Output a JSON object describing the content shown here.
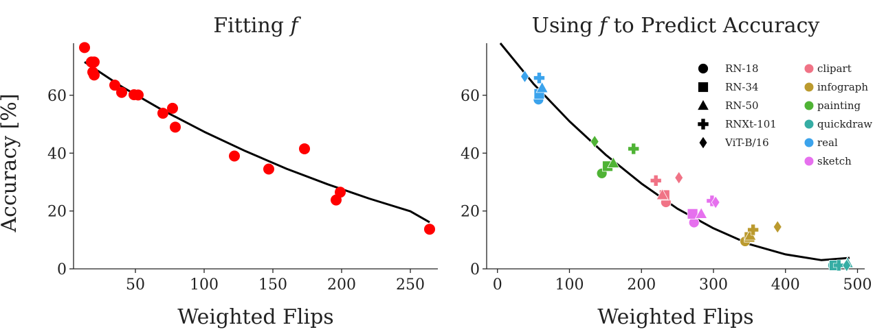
{
  "chart_data": [
    {
      "type": "scatter",
      "title": "Fitting 𝑓",
      "xlabel": "Weighted Flips",
      "ylabel": "Accuracy [%]",
      "xlim": [
        5,
        270
      ],
      "ylim": [
        0,
        78
      ],
      "xticks": [
        50,
        100,
        150,
        200,
        250
      ],
      "yticks": [
        0,
        20,
        40,
        60
      ],
      "grid": false,
      "point_color": "#ff0000",
      "line_color": "#000000",
      "points": [
        {
          "x": 13,
          "y": 76.5
        },
        {
          "x": 18,
          "y": 71.5
        },
        {
          "x": 20,
          "y": 71.5
        },
        {
          "x": 19,
          "y": 68
        },
        {
          "x": 20,
          "y": 67
        },
        {
          "x": 35,
          "y": 63.5
        },
        {
          "x": 40,
          "y": 61
        },
        {
          "x": 49,
          "y": 60.2
        },
        {
          "x": 52,
          "y": 60.1
        },
        {
          "x": 70,
          "y": 53.8
        },
        {
          "x": 77,
          "y": 55.5
        },
        {
          "x": 79,
          "y": 49
        },
        {
          "x": 122,
          "y": 39
        },
        {
          "x": 147,
          "y": 34.5
        },
        {
          "x": 173,
          "y": 41.5
        },
        {
          "x": 196,
          "y": 23.8
        },
        {
          "x": 199,
          "y": 26.5
        },
        {
          "x": 264,
          "y": 13.7
        }
      ],
      "fit_curve": {
        "x": [
          13,
          40,
          70,
          100,
          130,
          160,
          190,
          220,
          250,
          264
        ],
        "y": [
          71.5,
          63.0,
          54.8,
          47.4,
          40.7,
          34.6,
          29.2,
          24.3,
          19.9,
          16.1
        ]
      }
    },
    {
      "type": "scatter",
      "title": "Using 𝑓 to Predict Accuracy",
      "xlabel": "Weighted Flips",
      "ylabel": "",
      "xlim": [
        -15,
        510
      ],
      "ylim": [
        0,
        78
      ],
      "xticks": [
        0,
        100,
        200,
        300,
        400,
        500
      ],
      "yticks": [
        0,
        20,
        40,
        60
      ],
      "grid": false,
      "legend_position": "top-right",
      "legend_models": [
        {
          "name": "RN-18",
          "marker": "circle"
        },
        {
          "name": "RN-34",
          "marker": "square"
        },
        {
          "name": "RN-50",
          "marker": "triangle"
        },
        {
          "name": "RNXt-101",
          "marker": "plus"
        },
        {
          "name": "ViT-B/16",
          "marker": "diamond"
        }
      ],
      "legend_domains": [
        {
          "name": "clipart",
          "color": "#f07386"
        },
        {
          "name": "infograph",
          "color": "#bb9a2e"
        },
        {
          "name": "painting",
          "color": "#4fb335"
        },
        {
          "name": "quickdraw",
          "color": "#36ada4"
        },
        {
          "name": "real",
          "color": "#3ba3ec"
        },
        {
          "name": "sketch",
          "color": "#e670ee"
        }
      ],
      "points": [
        {
          "domain": "real",
          "model": "RN-18",
          "x": 57,
          "y": 58.5
        },
        {
          "domain": "real",
          "model": "RN-34",
          "x": 58,
          "y": 60.5
        },
        {
          "domain": "real",
          "model": "RN-50",
          "x": 62,
          "y": 62.5
        },
        {
          "domain": "real",
          "model": "RNXt-101",
          "x": 58,
          "y": 66
        },
        {
          "domain": "real",
          "model": "ViT-B/16",
          "x": 38,
          "y": 66.5
        },
        {
          "domain": "painting",
          "model": "RN-18",
          "x": 145,
          "y": 33
        },
        {
          "domain": "painting",
          "model": "RN-34",
          "x": 153,
          "y": 35.5
        },
        {
          "domain": "painting",
          "model": "RN-50",
          "x": 161,
          "y": 36.5
        },
        {
          "domain": "painting",
          "model": "RNXt-101",
          "x": 189,
          "y": 41.5
        },
        {
          "domain": "painting",
          "model": "ViT-B/16",
          "x": 135,
          "y": 44
        },
        {
          "domain": "clipart",
          "model": "RN-18",
          "x": 234,
          "y": 23
        },
        {
          "domain": "clipart",
          "model": "RN-34",
          "x": 232,
          "y": 25.5
        },
        {
          "domain": "clipart",
          "model": "RN-50",
          "x": 229,
          "y": 25.5
        },
        {
          "domain": "clipart",
          "model": "RNXt-101",
          "x": 220,
          "y": 30.5
        },
        {
          "domain": "clipart",
          "model": "ViT-B/16",
          "x": 252,
          "y": 31.5
        },
        {
          "domain": "sketch",
          "model": "RN-18",
          "x": 273,
          "y": 16
        },
        {
          "domain": "sketch",
          "model": "RN-34",
          "x": 271,
          "y": 19
        },
        {
          "domain": "sketch",
          "model": "RN-50",
          "x": 283,
          "y": 19
        },
        {
          "domain": "sketch",
          "model": "RNXt-101",
          "x": 298,
          "y": 23.5
        },
        {
          "domain": "sketch",
          "model": "ViT-B/16",
          "x": 303,
          "y": 23
        },
        {
          "domain": "infograph",
          "model": "RN-18",
          "x": 344,
          "y": 9.5
        },
        {
          "domain": "infograph",
          "model": "RN-34",
          "x": 350,
          "y": 11
        },
        {
          "domain": "infograph",
          "model": "RN-50",
          "x": 351,
          "y": 11.5
        },
        {
          "domain": "infograph",
          "model": "RNXt-101",
          "x": 355,
          "y": 13.5
        },
        {
          "domain": "infograph",
          "model": "ViT-B/16",
          "x": 389,
          "y": 14.5
        },
        {
          "domain": "quickdraw",
          "model": "RN-18",
          "x": 466,
          "y": 1.2
        },
        {
          "domain": "quickdraw",
          "model": "RN-34",
          "x": 468,
          "y": 1.2
        },
        {
          "domain": "quickdraw",
          "model": "RN-50",
          "x": 486,
          "y": 2
        },
        {
          "domain": "quickdraw",
          "model": "RNXt-101",
          "x": 474,
          "y": 1.2
        },
        {
          "domain": "quickdraw",
          "model": "ViT-B/16",
          "x": 485,
          "y": 1.2
        }
      ],
      "fit_curve": {
        "x": [
          4,
          50,
          100,
          150,
          200,
          250,
          300,
          350,
          400,
          450,
          489
        ],
        "y": [
          78,
          64,
          51,
          39.5,
          29.5,
          20.8,
          14,
          8.5,
          5,
          3,
          3.8
        ]
      }
    }
  ]
}
